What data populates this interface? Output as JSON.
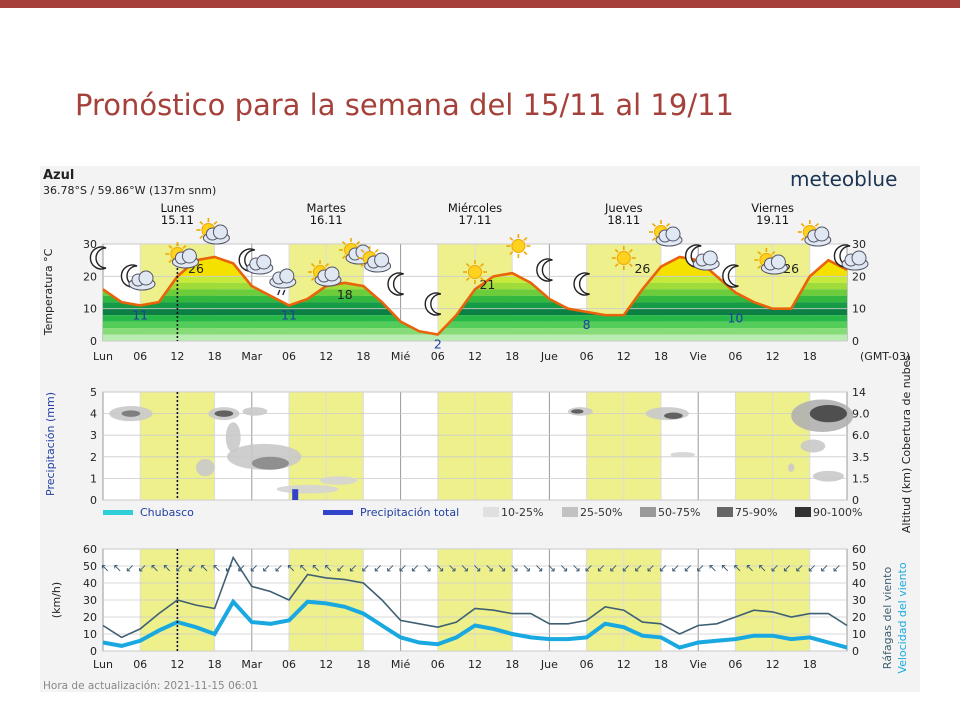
{
  "slide": {
    "title": "Pronóstico para la semana del 15/11 al 19/11",
    "top_bar_color": "#a5413a",
    "title_color": "#a5413a"
  },
  "meteogram": {
    "location": "Azul",
    "coords": "36.78°S / 59.86°W (137m snm)",
    "brand": "meteoblue",
    "timezone": "(GMT-03)",
    "update_text": "Hora de actualización: 2021-11-15 06:01",
    "days": [
      {
        "name": "Lunes",
        "date": "15.11"
      },
      {
        "name": "Martes",
        "date": "16.11"
      },
      {
        "name": "Miércoles",
        "date": "17.11"
      },
      {
        "name": "Jueves",
        "date": "18.11"
      },
      {
        "name": "Viernes",
        "date": "19.11"
      }
    ],
    "hour_labels": [
      "Lun",
      "06",
      "12",
      "18",
      "Mar",
      "06",
      "12",
      "18",
      "Mié",
      "06",
      "12",
      "18",
      "Jue",
      "06",
      "12",
      "18",
      "Vie",
      "06",
      "12",
      "18"
    ],
    "colors": {
      "daylight": "#eef08c",
      "temp_line": "#e8630a",
      "warm_fill": "#f5e100",
      "gust_line": "#3f6072",
      "wind_line": "#19a9e0",
      "total_precip": "#3344cc",
      "shower": "#2ecfd6"
    }
  },
  "chart_data": [
    {
      "type": "line",
      "title": "",
      "ylabel": "Temperatura °C",
      "ylim": [
        0,
        30
      ],
      "yticks": [
        "30",
        "20",
        "10",
        "0"
      ],
      "hours_from_start": [
        0,
        3,
        6,
        9,
        12,
        15,
        18,
        21,
        24,
        27,
        30,
        33,
        36,
        39,
        42,
        45,
        48,
        51,
        54,
        57,
        60,
        63,
        66,
        69,
        72,
        75,
        78,
        81,
        84,
        87,
        90,
        93,
        96,
        99,
        102,
        105,
        108,
        111,
        114,
        117,
        120
      ],
      "series": [
        {
          "values": [
            16,
            12,
            11,
            12,
            20,
            25,
            26,
            24,
            17,
            14,
            11,
            13,
            17,
            18,
            17,
            12,
            6,
            3,
            2,
            8,
            16,
            20,
            21,
            18,
            13,
            10,
            9,
            8,
            8,
            16,
            23,
            26,
            25,
            20,
            15,
            12,
            10,
            10,
            20,
            25,
            22
          ]
        }
      ],
      "annotations": [
        {
          "hour": 6,
          "value": 11,
          "label": "11"
        },
        {
          "hour": 15,
          "value": 26,
          "label": "26"
        },
        {
          "hour": 30,
          "value": 11,
          "label": "11"
        },
        {
          "hour": 39,
          "value": 18,
          "label": "18"
        },
        {
          "hour": 54,
          "value": 2,
          "label": "2"
        },
        {
          "hour": 62,
          "value": 21,
          "label": "21"
        },
        {
          "hour": 78,
          "value": 8,
          "label": "8"
        },
        {
          "hour": 87,
          "value": 26,
          "label": "26"
        },
        {
          "hour": 102,
          "value": 10,
          "label": "10"
        },
        {
          "hour": 111,
          "value": 26,
          "label": "26"
        }
      ]
    },
    {
      "type": "heatmap",
      "ylabel": "Precipitación (mm)",
      "ylabel_right": "Altitud (km) Cobertura de nubes",
      "ylim": [
        0,
        5
      ],
      "yticks_left": [
        "5",
        "4",
        "3",
        "2",
        "1",
        "0"
      ],
      "yticks_right": [
        "14",
        "9.0",
        "6.0",
        "3.5",
        "1.5",
        "0"
      ],
      "legend": [
        {
          "label": "Chubasco"
        },
        {
          "label": "Precipitación total"
        },
        {
          "label": "10-25%"
        },
        {
          "label": "25-50%"
        },
        {
          "label": "50-75%"
        },
        {
          "label": "75-90%"
        },
        {
          "label": "90-100%"
        }
      ],
      "precipitation_total": [
        {
          "hour": 31,
          "mm": 0.5
        }
      ]
    },
    {
      "type": "line",
      "ylabel": "(km/h)",
      "ylabel_right": "Ráfagas del viento",
      "ylabel_right2": "Velocidad del viento",
      "ylim": [
        0,
        60
      ],
      "yticks": [
        "60",
        "50",
        "40",
        "30",
        "20",
        "10",
        "0"
      ],
      "hours_from_start": [
        0,
        3,
        6,
        9,
        12,
        15,
        18,
        21,
        24,
        27,
        30,
        33,
        36,
        39,
        42,
        45,
        48,
        51,
        54,
        57,
        60,
        63,
        66,
        69,
        72,
        75,
        78,
        81,
        84,
        87,
        90,
        93,
        96,
        99,
        102,
        105,
        108,
        111,
        114,
        117,
        120
      ],
      "series": [
        {
          "name": "Ráfagas del viento",
          "values": [
            15,
            8,
            13,
            22,
            30,
            27,
            25,
            55,
            38,
            35,
            30,
            45,
            43,
            42,
            40,
            30,
            18,
            16,
            14,
            17,
            25,
            24,
            22,
            22,
            16,
            16,
            18,
            26,
            24,
            17,
            16,
            10,
            15,
            16,
            20,
            24,
            23,
            20,
            22,
            22,
            15
          ]
        },
        {
          "name": "Velocidad del viento",
          "values": [
            5,
            3,
            6,
            12,
            17,
            14,
            10,
            29,
            17,
            16,
            18,
            29,
            28,
            26,
            22,
            15,
            8,
            5,
            4,
            8,
            15,
            13,
            10,
            8,
            7,
            7,
            8,
            16,
            14,
            9,
            8,
            2,
            5,
            6,
            7,
            9,
            9,
            7,
            8,
            5,
            2
          ]
        }
      ]
    }
  ]
}
